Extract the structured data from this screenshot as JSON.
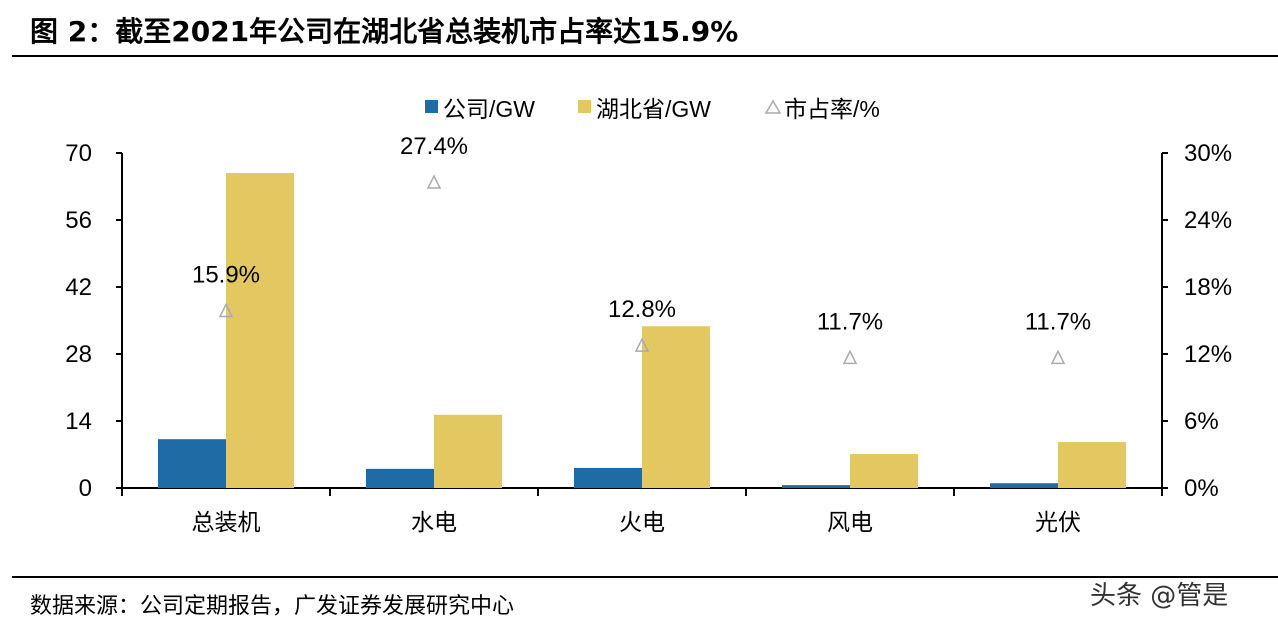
{
  "title": "图 2：截至2021年公司在湖北省总装机市占率达15.9%",
  "source": "数据来源：公司定期报告，广发证券发展研究中心",
  "watermark": "头条 @管是",
  "chart_data": {
    "type": "bar",
    "title": "截至2021年公司在湖北省总装机市占率达15.9%",
    "categories": [
      "总装机",
      "水电",
      "火电",
      "风电",
      "光伏"
    ],
    "series": [
      {
        "name": "公司/GW",
        "type": "bar",
        "axis": "left",
        "color": "#1F6BA5",
        "values": [
          10.2,
          4.0,
          4.2,
          0.6,
          1.0
        ]
      },
      {
        "name": "湖北省/GW",
        "type": "bar",
        "axis": "left",
        "color": "#E3C862",
        "values": [
          65.8,
          15.3,
          33.8,
          7.1,
          9.6
        ]
      },
      {
        "name": "市占率/%",
        "type": "scatter",
        "marker": "triangle",
        "axis": "right",
        "color": "#AAAAAA",
        "values": [
          15.9,
          27.4,
          12.8,
          11.7,
          11.7
        ],
        "labels": [
          "15.9%",
          "27.4%",
          "12.8%",
          "11.7%",
          "11.7%"
        ]
      }
    ],
    "ylim_left": [
      0,
      70
    ],
    "yticks_left": [
      "0",
      "14",
      "28",
      "42",
      "56",
      "70"
    ],
    "ylim_right": [
      0,
      30
    ],
    "yticks_right": [
      "0%",
      "6%",
      "12%",
      "18%",
      "24%",
      "30%"
    ],
    "grid": false,
    "legend": "top"
  }
}
